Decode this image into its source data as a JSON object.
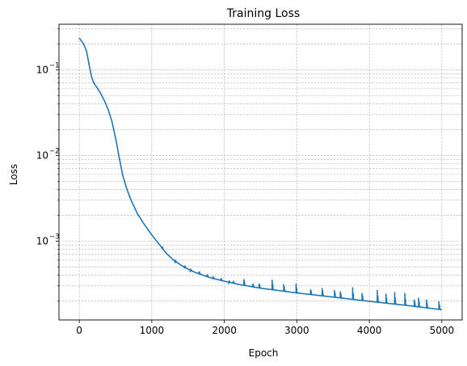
{
  "chart_data": {
    "type": "line",
    "title": "Training Loss",
    "xlabel": "Epoch",
    "ylabel": "Loss",
    "yscale": "log",
    "xlim": [
      -280,
      5280
    ],
    "ylim": [
      0.00012,
      0.34
    ],
    "grid": true,
    "grid_style": "dashed",
    "line_color": "#1f77b4",
    "x_ticks": [
      "0",
      "1000",
      "2000",
      "3000",
      "4000",
      "5000"
    ],
    "x_tick_values": [
      0,
      1000,
      2000,
      3000,
      4000,
      5000
    ],
    "y_ticks": [
      {
        "value": 0.1,
        "base": "10",
        "exp": "−1"
      },
      {
        "value": 0.01,
        "base": "10",
        "exp": "−2"
      },
      {
        "value": 0.001,
        "base": "10",
        "exp": "−3"
      }
    ],
    "series": [
      {
        "base_curve": [
          [
            0,
            0.235
          ],
          [
            60,
            0.2
          ],
          [
            100,
            0.165
          ],
          [
            140,
            0.11
          ],
          [
            170,
            0.082
          ],
          [
            200,
            0.07
          ],
          [
            250,
            0.061
          ],
          [
            300,
            0.052
          ],
          [
            350,
            0.043
          ],
          [
            400,
            0.034
          ],
          [
            450,
            0.025
          ],
          [
            500,
            0.016
          ],
          [
            550,
            0.0095
          ],
          [
            600,
            0.0058
          ],
          [
            650,
            0.0042
          ],
          [
            700,
            0.0032
          ],
          [
            800,
            0.0021
          ],
          [
            900,
            0.00155
          ],
          [
            1000,
            0.00118
          ],
          [
            1100,
            0.00092
          ],
          [
            1200,
            0.00072
          ],
          [
            1300,
            0.0006
          ],
          [
            1400,
            0.000525
          ],
          [
            1500,
            0.00047
          ],
          [
            1600,
            0.00043
          ],
          [
            1800,
            0.000375
          ],
          [
            2000,
            0.00034
          ],
          [
            2200,
            0.000312
          ],
          [
            2500,
            0.000282
          ],
          [
            3000,
            0.000248
          ],
          [
            3500,
            0.000222
          ],
          [
            4000,
            0.000198
          ],
          [
            4500,
            0.000178
          ],
          [
            5000,
            0.000158
          ]
        ],
        "spikes": [
          [
            1140,
            0.00082
          ],
          [
            1320,
            0.00056
          ],
          [
            1450,
            0.000485
          ],
          [
            1530,
            0.00044
          ],
          [
            1650,
            0.00043
          ],
          [
            1760,
            0.000395
          ],
          [
            1840,
            0.000365
          ],
          [
            1950,
            0.000355
          ],
          [
            2060,
            0.00032
          ],
          [
            2120,
            0.00033
          ],
          [
            2270,
            0.000355
          ],
          [
            2390,
            0.00031
          ],
          [
            2480,
            0.000315
          ],
          [
            2660,
            0.00035
          ],
          [
            2820,
            0.00031
          ],
          [
            2990,
            0.000315
          ],
          [
            3190,
            0.00027
          ],
          [
            3350,
            0.00028
          ],
          [
            3520,
            0.000265
          ],
          [
            3600,
            0.000255
          ],
          [
            3770,
            0.000285
          ],
          [
            3900,
            0.000245
          ],
          [
            4110,
            0.000265
          ],
          [
            4230,
            0.00024
          ],
          [
            4350,
            0.00025
          ],
          [
            4490,
            0.000245
          ],
          [
            4620,
            0.000205
          ],
          [
            4680,
            0.000215
          ],
          [
            4790,
            0.000205
          ],
          [
            4960,
            0.000195
          ]
        ]
      }
    ]
  }
}
